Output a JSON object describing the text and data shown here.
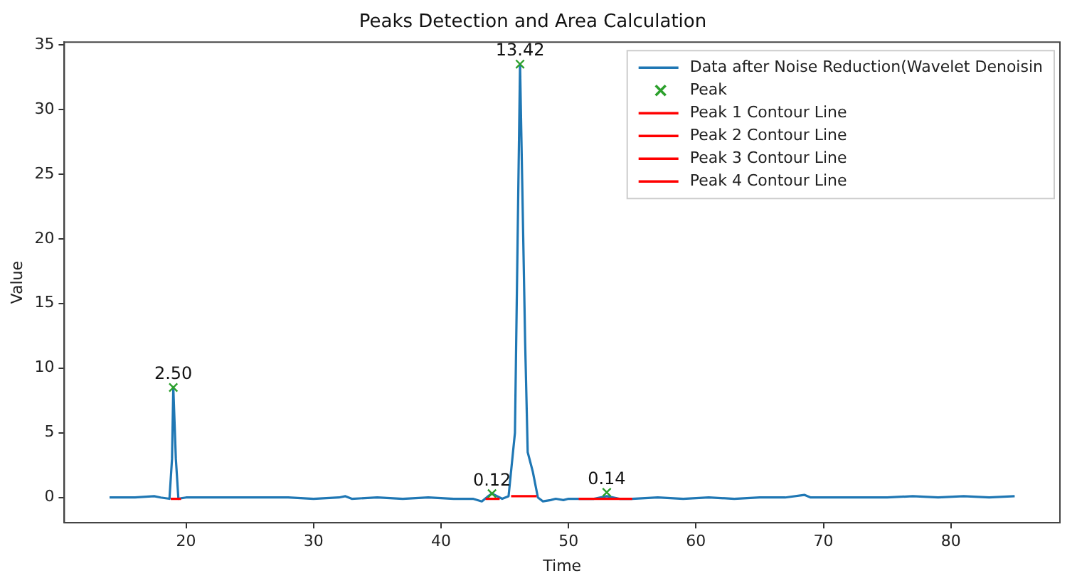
{
  "chart_data": {
    "type": "line",
    "title": "Peaks Detection and Area Calculation",
    "xlabel": "Time",
    "ylabel": "Value",
    "xlim": [
      10.45,
      88.55
    ],
    "ylim": [
      -1.95,
      35.2
    ],
    "xticks": [
      20,
      30,
      40,
      50,
      60,
      70,
      80
    ],
    "yticks": [
      0,
      5,
      10,
      15,
      20,
      25,
      30,
      35
    ],
    "grid": false,
    "legend": "top right",
    "line_style": "solid",
    "series": [
      {
        "name": "Data after Noise Reduction(Wavelet Denoisin",
        "color": "#1f77b4",
        "marker": "none",
        "x": [
          14,
          16,
          17.5,
          18,
          18.7,
          18.9,
          19.0,
          19.2,
          19.4,
          20,
          22,
          24,
          26,
          28,
          30,
          32,
          32.5,
          33,
          35,
          37,
          39,
          41,
          42.5,
          43.2,
          43.7,
          44,
          44.4,
          44.8,
          45.3,
          45.8,
          46.2,
          46.6,
          46.8,
          47.2,
          47.6,
          48,
          48.6,
          49,
          49.6,
          50,
          51,
          52,
          53,
          54,
          55,
          57,
          59,
          61,
          63,
          65,
          67,
          68.5,
          69,
          71,
          73,
          75,
          77,
          79,
          81,
          83,
          85
        ],
        "values": [
          0,
          0,
          0.1,
          0,
          -0.1,
          3,
          8.5,
          3,
          -0.1,
          0,
          0,
          0,
          0,
          0,
          -0.1,
          0,
          0.1,
          -0.1,
          0,
          -0.1,
          0,
          -0.1,
          -0.1,
          -0.3,
          0.1,
          0.3,
          0.1,
          -0.1,
          0.1,
          5,
          33.5,
          12,
          3.5,
          2,
          0,
          -0.3,
          -0.2,
          -0.1,
          -0.2,
          -0.1,
          -0.1,
          -0.1,
          0.1,
          -0.1,
          -0.1,
          0,
          -0.1,
          0,
          -0.1,
          0,
          0,
          0.2,
          0,
          0,
          0,
          0,
          0.1,
          0,
          0.1,
          0,
          0.1
        ]
      },
      {
        "name": "Peak",
        "type": "scatter",
        "color": "#2ca02c",
        "marker": "cross",
        "x": [
          19,
          44,
          46.2,
          53
        ],
        "values": [
          8.5,
          0.3,
          33.5,
          0.4
        ]
      },
      {
        "name": "Peak 1 Contour Line",
        "color": "#ff0000",
        "marker": "none",
        "x": [
          18.8,
          19.6
        ],
        "values": [
          -0.1,
          -0.1
        ]
      },
      {
        "name": "Peak 2 Contour Line",
        "color": "#ff0000",
        "marker": "none",
        "x": [
          43.5,
          44.6
        ],
        "values": [
          -0.1,
          -0.1
        ]
      },
      {
        "name": "Peak 3 Contour Line",
        "color": "#ff0000",
        "marker": "none",
        "x": [
          45.5,
          47.5
        ],
        "values": [
          0.1,
          0.1
        ]
      },
      {
        "name": "Peak 4 Contour Line",
        "color": "#ff0000",
        "marker": "none",
        "x": [
          50.8,
          55
        ],
        "values": [
          -0.1,
          -0.1
        ]
      }
    ],
    "annotations": [
      {
        "text": "2.50",
        "x": 19,
        "y": 8.5
      },
      {
        "text": "0.12",
        "x": 44,
        "y": 0.3
      },
      {
        "text": "13.42",
        "x": 46.2,
        "y": 33.5
      },
      {
        "text": "0.14",
        "x": 53,
        "y": 0.4
      }
    ]
  }
}
